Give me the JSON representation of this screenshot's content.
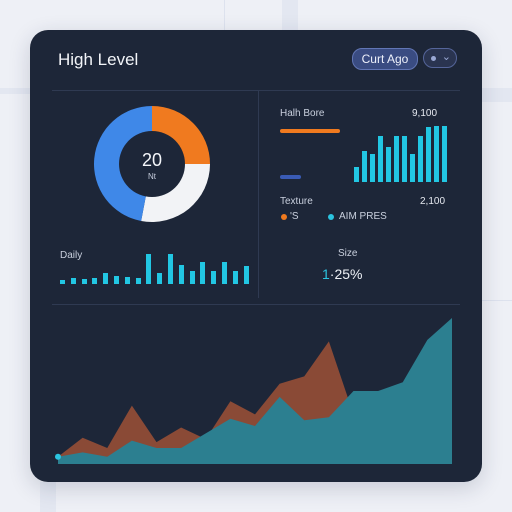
{
  "panel": {
    "title": "High Level",
    "button_label": "Curt Ago"
  },
  "donut": {
    "center_value": "20",
    "center_label": "Nt",
    "slices": [
      {
        "color": "#f07a1f",
        "fraction": 0.25
      },
      {
        "color": "#f2f3f6",
        "fraction": 0.28
      },
      {
        "color": "#3f88e8",
        "fraction": 0.47
      }
    ]
  },
  "top_right": {
    "label": "Halh Bore",
    "value": "9,100",
    "bar_colors": [
      "#f07a1f",
      "#3a5bb5"
    ],
    "bar_fractions": [
      0.56,
      0.19
    ],
    "bars": [
      0.26,
      0.56,
      0.5,
      0.82,
      0.62,
      0.82,
      0.82,
      0.5,
      0.82,
      0.98,
      1.0,
      1.0
    ]
  },
  "texture": {
    "label": "Texture",
    "value": "2,100",
    "legend": [
      {
        "color": "#f07a1f",
        "label": "'S"
      },
      {
        "color": "#2bc4e0",
        "label": "AIM PRES"
      }
    ]
  },
  "daily": {
    "label": "Daily",
    "bars": [
      0.12,
      0.2,
      0.17,
      0.2,
      0.37,
      0.27,
      0.22,
      0.2,
      1.0,
      0.37,
      1.0,
      0.63,
      0.45,
      0.75,
      0.45,
      0.73,
      0.45,
      0.61
    ]
  },
  "size_stat": {
    "label": "Size",
    "value": "1.25%",
    "prefix": "1",
    "rest": "·25%"
  },
  "area_chart": {
    "back_series": [
      0.05,
      0.18,
      0.11,
      0.4,
      0.15,
      0.25,
      0.17,
      0.43,
      0.34,
      0.55,
      0.6,
      0.84,
      0.34,
      0.49,
      0.55,
      0.68,
      1.0
    ],
    "front_series": [
      0.05,
      0.08,
      0.05,
      0.16,
      0.11,
      0.11,
      0.21,
      0.31,
      0.26,
      0.46,
      0.3,
      0.32,
      0.5,
      0.5,
      0.56,
      0.85,
      1.0
    ],
    "back_color": "#8a4a36",
    "front_color": "#2c7f90"
  }
}
